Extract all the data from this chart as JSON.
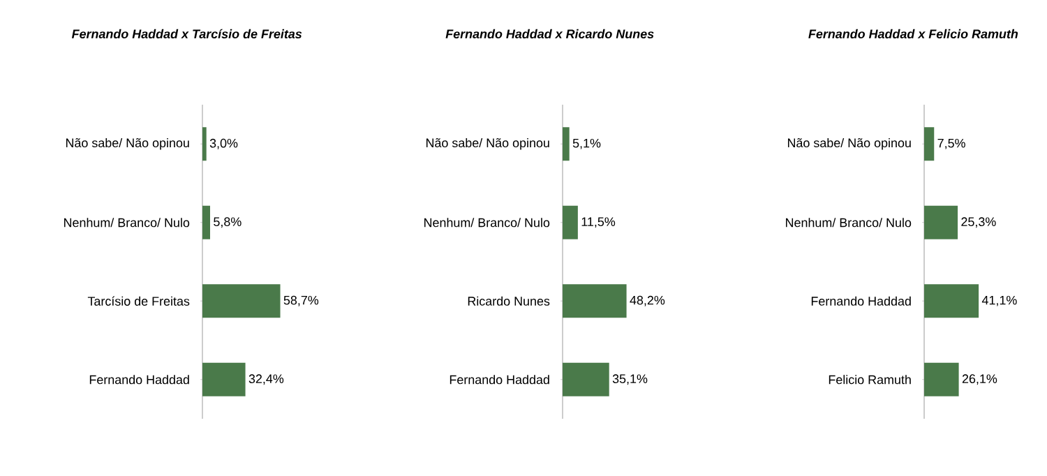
{
  "chart_data": [
    {
      "type": "bar",
      "orientation": "horizontal",
      "title": "Fernando Haddad x Tarcísio de Freitas",
      "categories": [
        "Não sabe/ Não opinou",
        "Nenhum/ Branco/ Nulo",
        "Tarcísio de Freitas",
        "Fernando Haddad"
      ],
      "values": [
        3.0,
        5.8,
        58.7,
        32.4
      ],
      "value_labels": [
        "3,0%",
        "5,8%",
        "58,7%",
        "32,4%"
      ],
      "color": "#4a7a4a",
      "tick_labels": "y"
    },
    {
      "type": "bar",
      "orientation": "horizontal",
      "title": "Fernando Haddad x Ricardo Nunes",
      "categories": [
        "Não sabe/ Não opinou",
        "Nenhum/ Branco/ Nulo",
        "Ricardo Nunes",
        "Fernando Haddad"
      ],
      "values": [
        5.1,
        11.5,
        48.2,
        35.1
      ],
      "value_labels": [
        "5,1%",
        "11,5%",
        "48,2%",
        "35,1%"
      ],
      "color": "#4a7a4a",
      "tick_labels": "y"
    },
    {
      "type": "bar",
      "orientation": "horizontal",
      "title": "Fernando Haddad x Felicio Ramuth",
      "categories": [
        "Não sabe/ Não opinou",
        "Nenhum/ Branco/ Nulo",
        "Fernando Haddad",
        "Felicio Ramuth"
      ],
      "values": [
        7.5,
        25.3,
        41.1,
        26.1
      ],
      "value_labels": [
        "7,5%",
        "25,3%",
        "41,1%",
        "26,1%"
      ],
      "color": "#4a7a4a",
      "tick_labels": "y"
    }
  ]
}
